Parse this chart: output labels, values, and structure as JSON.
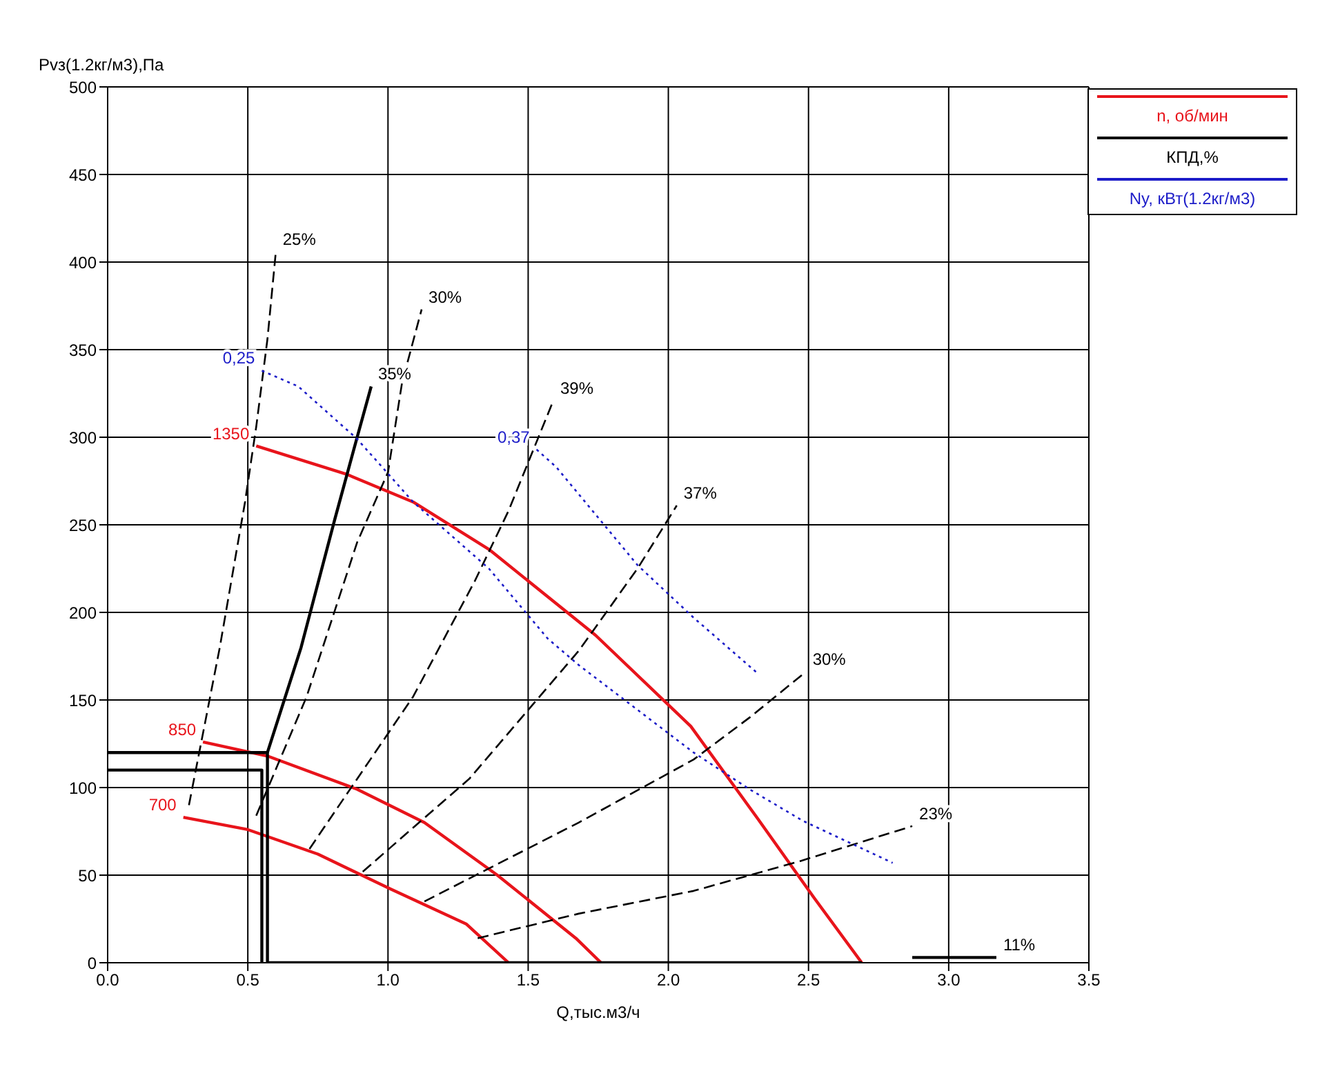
{
  "chart_data": {
    "type": "line",
    "xlabel": "Q,тыс.м3/ч",
    "ylabel": "Pvз(1.2кг/м3),Па",
    "xlim": [
      0,
      3.5
    ],
    "ylim": [
      0,
      500
    ],
    "xticks": [
      {
        "value": 0,
        "label": "0.0"
      },
      {
        "value": 0.5,
        "label": "0.5"
      },
      {
        "value": 1,
        "label": "1.0"
      },
      {
        "value": 1.5,
        "label": "1.5"
      },
      {
        "value": 2,
        "label": "2.0"
      },
      {
        "value": 2.5,
        "label": "2.5"
      },
      {
        "value": 3,
        "label": "3.0"
      },
      {
        "value": 3.5,
        "label": "3.5"
      }
    ],
    "yticks": [
      0,
      50,
      100,
      150,
      200,
      250,
      300,
      350,
      400,
      450,
      500
    ],
    "grid": true,
    "legend": "top right",
    "marker": "none",
    "series": [
      {
        "name": "n, об/мин",
        "color": "#e8141b",
        "line_style": "solid",
        "x": [
          0.53,
          0.85,
          1.09,
          1.36,
          1.74,
          2.08,
          2.32,
          2.52,
          2.69
        ],
        "values": [
          295,
          279,
          263,
          236,
          187,
          135,
          82,
          37,
          0
        ]
      },
      {
        "color": "#e8141b",
        "line_style": "solid",
        "x": [
          0.34,
          0.57,
          0.89,
          1.13,
          1.39,
          1.67,
          1.76
        ],
        "values": [
          126,
          118,
          99,
          80,
          50,
          14,
          0
        ]
      },
      {
        "color": "#e8141b",
        "line_style": "solid",
        "x": [
          0.27,
          0.5,
          0.75,
          1.01,
          1.28,
          1.43
        ],
        "values": [
          83,
          76,
          62,
          42,
          22,
          0
        ]
      },
      {
        "name": "КПД,%",
        "color": "#000000",
        "line_style": "dashed",
        "x": [
          0.29,
          0.4,
          0.49,
          0.53,
          0.57,
          0.6
        ],
        "values": [
          90,
          180,
          263,
          306,
          356,
          406
        ]
      },
      {
        "color": "#000000",
        "line_style": "dashed",
        "x": [
          0.53,
          0.71,
          0.89,
          1.0,
          1.05,
          1.12
        ],
        "values": [
          84,
          152,
          240,
          280,
          331,
          373
        ]
      },
      {
        "color": "#000000",
        "line_style": "solid",
        "x": [
          0.57,
          0.69,
          0.81,
          0.89,
          0.94
        ],
        "values": [
          120,
          180,
          253,
          300,
          329
        ]
      },
      {
        "color": "#000000",
        "line_style": "dashed",
        "x": [
          0.72,
          1.09,
          1.31,
          1.43,
          1.59
        ],
        "values": [
          65,
          152,
          218,
          258,
          321
        ]
      },
      {
        "color": "#000000",
        "line_style": "dashed",
        "x": [
          0.91,
          1.29,
          1.68,
          1.89,
          2.03
        ],
        "values": [
          52,
          105,
          178,
          225,
          261
        ]
      },
      {
        "color": "#000000",
        "line_style": "dashed",
        "x": [
          1.13,
          1.68,
          2.09,
          2.29,
          2.49
        ],
        "values": [
          35,
          80,
          116,
          140,
          166
        ]
      },
      {
        "color": "#000000",
        "line_style": "dashed",
        "x": [
          1.32,
          1.68,
          2.09,
          2.47,
          2.87
        ],
        "values": [
          14,
          28,
          41,
          58,
          78
        ]
      },
      {
        "color": "#000000",
        "line_style": "solid",
        "x": [
          2.87,
          3.17
        ],
        "values": [
          3,
          3
        ]
      },
      {
        "name": "Ny, кВт(1.2кг/м3)",
        "color": "#1c1cc8",
        "line_style": "dotted",
        "x": [
          0.55,
          0.68,
          0.89,
          1.09,
          1.36,
          1.57,
          1.68,
          2.09,
          2.29,
          2.48,
          2.8
        ],
        "values": [
          338,
          329,
          299,
          263,
          225,
          185,
          170,
          120,
          99,
          81,
          57
        ]
      },
      {
        "color": "#1c1cc8",
        "line_style": "dotted",
        "x": [
          1.53,
          1.6,
          1.89,
          2.09,
          2.32
        ],
        "values": [
          293,
          283,
          227,
          197,
          165
        ]
      },
      {
        "color": "#000000",
        "line_style": "solid",
        "x": [
          0,
          0.57,
          0.57
        ],
        "values": [
          120,
          120,
          0
        ]
      },
      {
        "color": "#000000",
        "line_style": "solid",
        "x": [
          0,
          0.55,
          0.55
        ],
        "values": [
          110,
          110,
          0
        ]
      },
      {
        "color": "#000000",
        "line_style": "solid",
        "x": [
          0.57,
          2.69
        ],
        "values": [
          0,
          0
        ]
      }
    ],
    "annotations": [
      {
        "text": "1350",
        "x": 0.53,
        "y": 295
      },
      {
        "text": "850",
        "x": 0.34,
        "y": 126
      },
      {
        "text": "700",
        "x": 0.27,
        "y": 83
      },
      {
        "text": "0,25",
        "x": 0.55,
        "y": 338
      },
      {
        "text": "0,37",
        "x": 1.53,
        "y": 293
      },
      {
        "text": "25%",
        "x": 0.6,
        "y": 406
      },
      {
        "text": "30%",
        "x": 1.12,
        "y": 373
      },
      {
        "text": "35%",
        "x": 0.94,
        "y": 329
      },
      {
        "text": "39%",
        "x": 1.59,
        "y": 321
      },
      {
        "text": "37%",
        "x": 2.03,
        "y": 261
      },
      {
        "text": "30%",
        "x": 2.49,
        "y": 166
      },
      {
        "text": "23%",
        "x": 2.87,
        "y": 78
      },
      {
        "text": "11%",
        "x": 3.17,
        "y": 3
      }
    ]
  }
}
